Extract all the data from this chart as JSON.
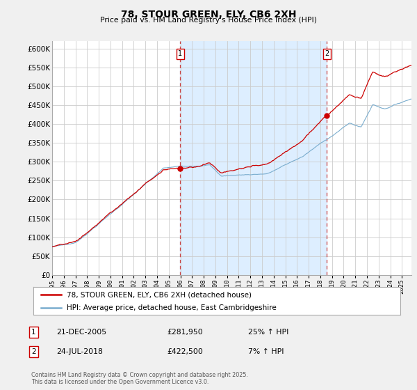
{
  "title": "78, STOUR GREEN, ELY, CB6 2XH",
  "subtitle": "Price paid vs. HM Land Registry's House Price Index (HPI)",
  "ylim": [
    0,
    620000
  ],
  "xlim_start": 1995.0,
  "xlim_end": 2025.83,
  "sale1_x": 2005.97,
  "sale1_y": 281950,
  "sale1_label": "1",
  "sale1_date": "21-DEC-2005",
  "sale1_price": "£281,950",
  "sale1_hpi": "25% ↑ HPI",
  "sale2_x": 2018.56,
  "sale2_y": 422500,
  "sale2_label": "2",
  "sale2_date": "24-JUL-2018",
  "sale2_price": "£422,500",
  "sale2_hpi": "7% ↑ HPI",
  "line1_color": "#cc0000",
  "line2_color": "#7aadce",
  "shade_color": "#ddeeff",
  "grid_color": "#cccccc",
  "bg_color": "#f0f0f0",
  "plot_bg_color": "#ffffff",
  "legend1_label": "78, STOUR GREEN, ELY, CB6 2XH (detached house)",
  "legend2_label": "HPI: Average price, detached house, East Cambridgeshire",
  "footnote": "Contains HM Land Registry data © Crown copyright and database right 2025.\nThis data is licensed under the Open Government Licence v3.0."
}
